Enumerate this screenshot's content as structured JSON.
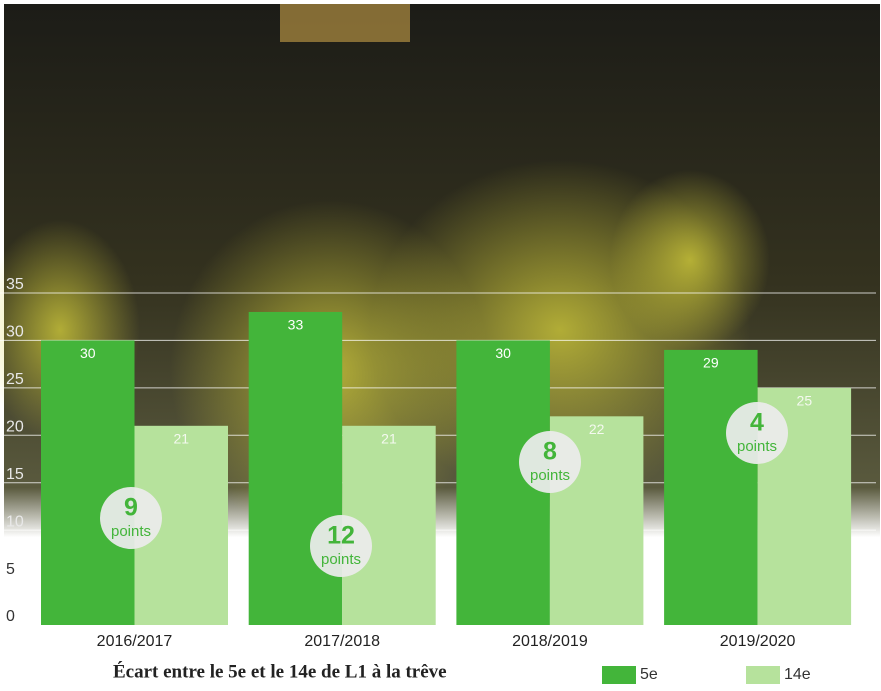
{
  "chart_data": {
    "type": "bar",
    "title": "Écart entre le 5e et le 14e de L1 à la trêve",
    "categories": [
      "2016/2017",
      "2017/2018",
      "2018/2019",
      "2019/2020"
    ],
    "series": [
      {
        "name": "5e",
        "color": "#43b53a",
        "values": [
          30,
          33,
          30,
          29
        ]
      },
      {
        "name": "14e",
        "color": "#b6e29c",
        "values": [
          21,
          21,
          22,
          25
        ]
      }
    ],
    "annotations": [
      {
        "value": 9,
        "unit": "points"
      },
      {
        "value": 12,
        "unit": "points"
      },
      {
        "value": 8,
        "unit": "points"
      },
      {
        "value": 4,
        "unit": "points"
      }
    ],
    "ylim": [
      0,
      35
    ],
    "yticks": [
      0,
      5,
      10,
      15,
      20,
      25,
      30,
      35
    ],
    "grid": true
  }
}
